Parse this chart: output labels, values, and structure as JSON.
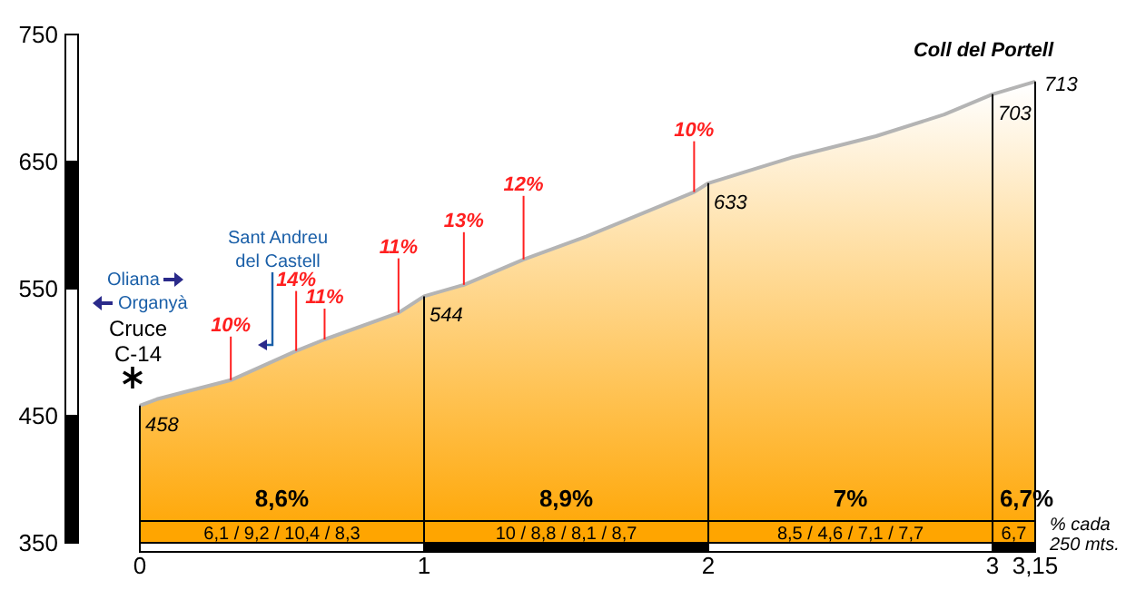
{
  "chart_data": {
    "type": "area",
    "title": "Coll del Portell",
    "x": [
      0,
      0.06,
      0.32,
      0.55,
      0.65,
      0.91,
      1,
      1.14,
      1.35,
      1.57,
      1.95,
      2,
      2.29,
      2.59,
      2.83,
      3,
      3.15
    ],
    "series": [
      {
        "color": "#ffa500",
        "values": [
          458,
          463,
          478,
          501,
          510,
          531,
          544,
          553,
          573,
          591,
          626,
          633,
          653,
          670,
          687,
          703,
          713
        ],
        "value_labels": [
          "458",
          null,
          null,
          null,
          null,
          null,
          "544",
          null,
          null,
          null,
          null,
          "633",
          null,
          null,
          null,
          "703",
          "713"
        ]
      }
    ],
    "xlim": [
      0,
      3.15
    ],
    "xticks": [
      0,
      1,
      2,
      3,
      {
        "value": 3.15,
        "label": "3,15"
      }
    ],
    "ylim": [
      350,
      750
    ],
    "yticks": [
      350,
      450,
      550,
      650,
      750
    ],
    "ref_lines": [
      {
        "axis": "x",
        "value": 1,
        "color": "#000000"
      },
      {
        "axis": "x",
        "value": 2,
        "color": "#000000"
      },
      {
        "axis": "x",
        "value": 3,
        "color": "#000000"
      }
    ],
    "annotations": [
      "8,6%",
      "8,9%",
      "7%",
      "6,7%",
      "6,1 / 9,2 / 10,4 / 8,3",
      "10 / 8,8 / 8,1 / 8,7",
      "8,5 / 4,6 / 7,1 / 7,7",
      "6,7",
      "% cada 250 mts.",
      "Oliana",
      "Organyà",
      "Cruce C-14",
      "Sant Andreu del Castell",
      {
        "text": "10%",
        "x": 0.32,
        "y": 478
      },
      {
        "text": "14%",
        "x": 0.55,
        "y": 501
      },
      {
        "text": "11%",
        "x": 0.65,
        "y": 510
      },
      {
        "text": "11%",
        "x": 0.91,
        "y": 531
      },
      {
        "text": "13%",
        "x": 1.14,
        "y": 553
      },
      {
        "text": "12%",
        "x": 1.35,
        "y": 573
      },
      {
        "text": "10%",
        "x": 1.95,
        "y": 626
      }
    ]
  }
}
